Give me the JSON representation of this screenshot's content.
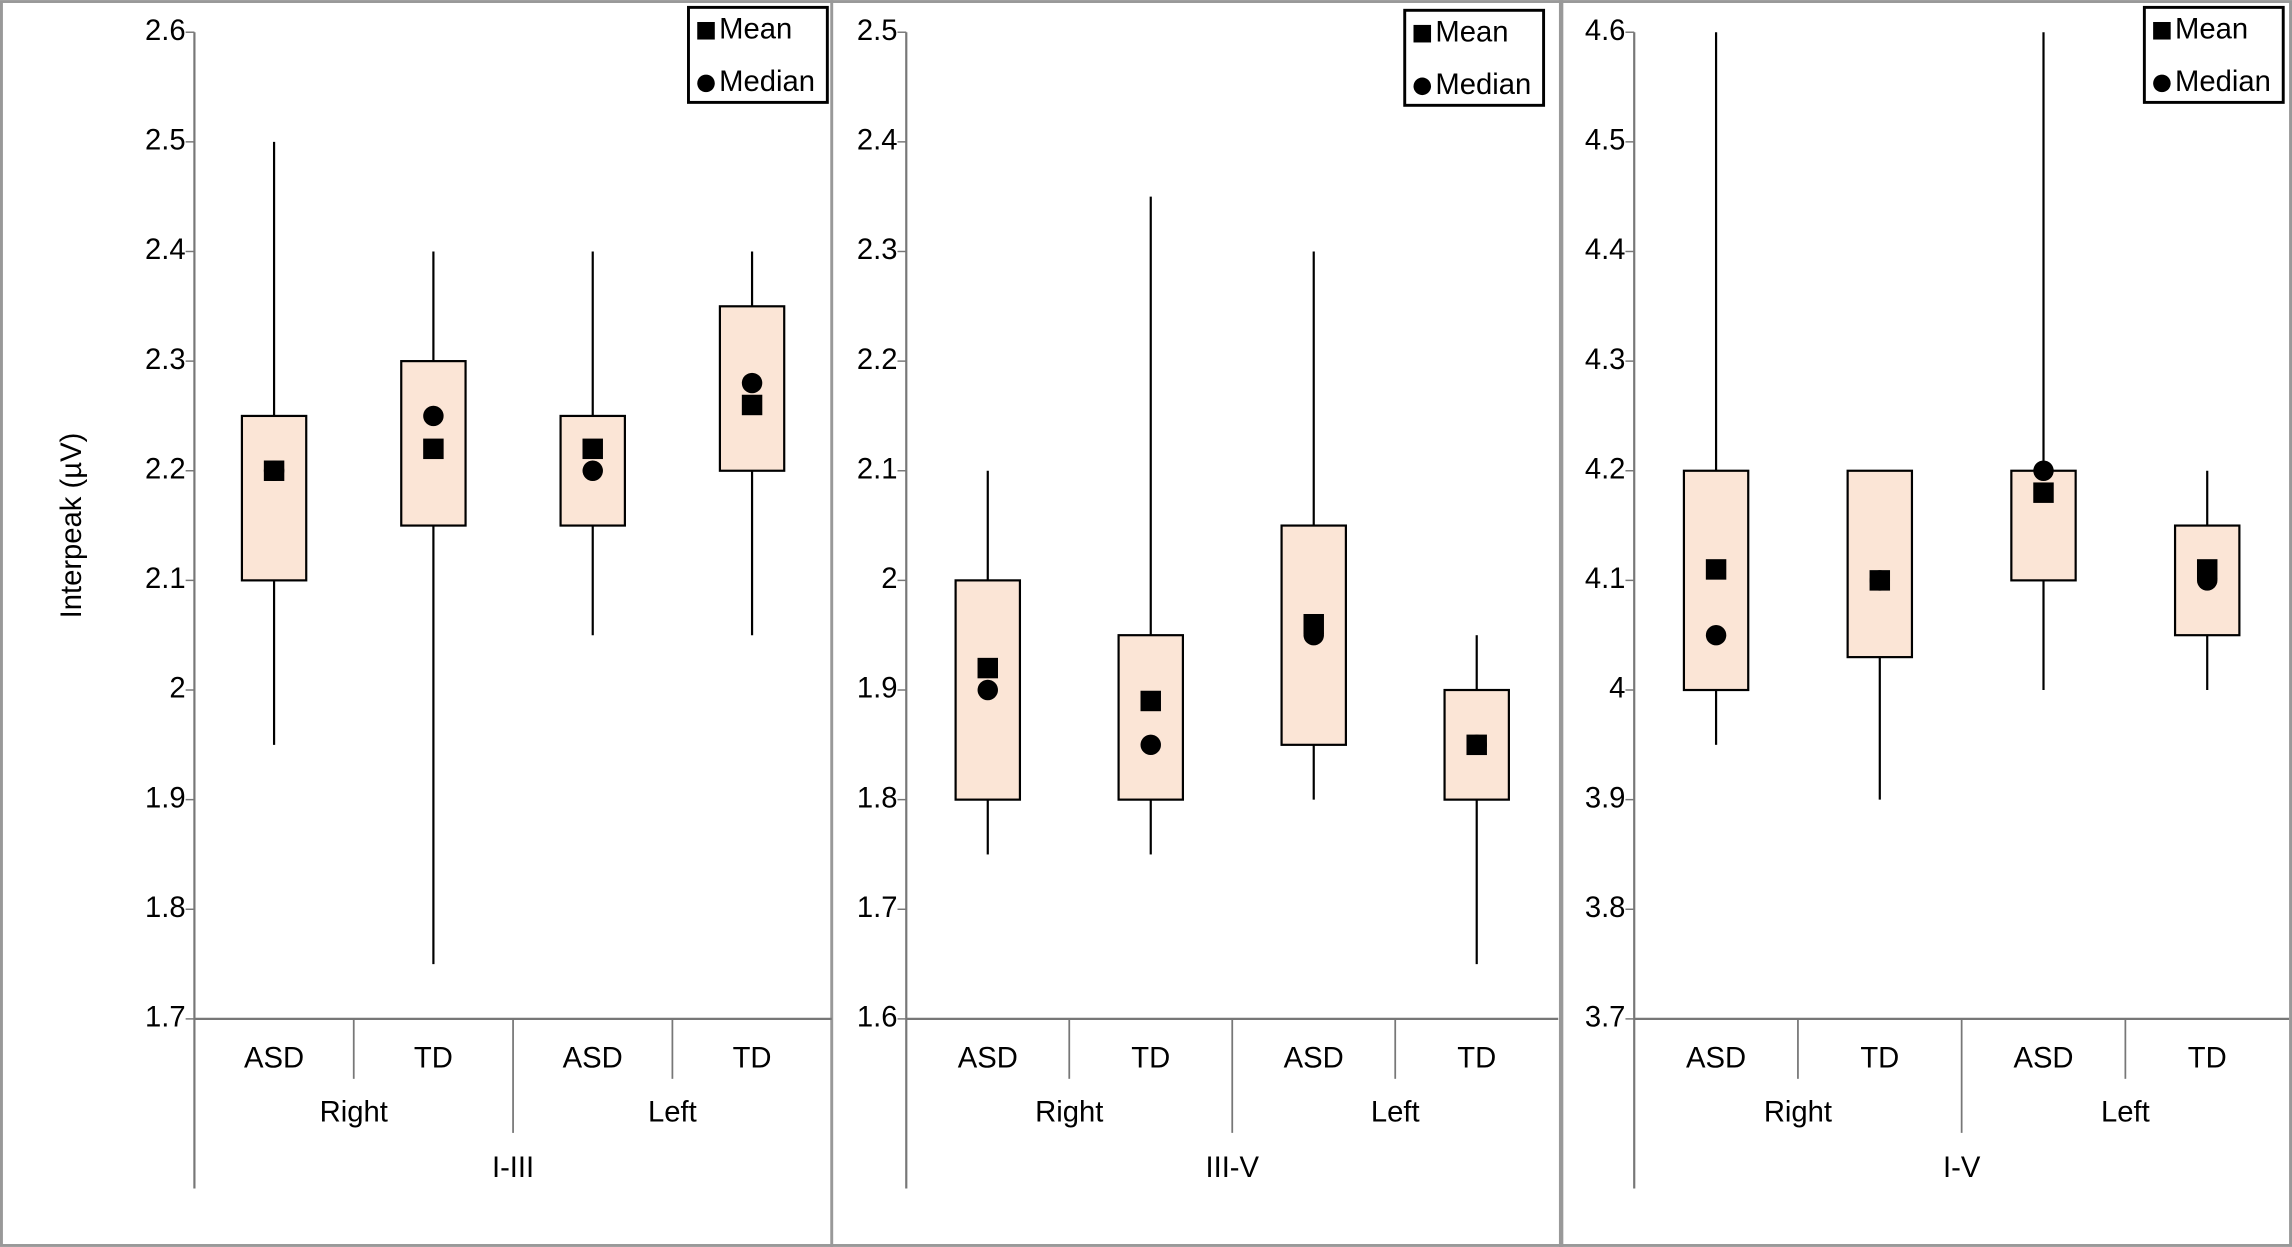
{
  "chart_data": [
    {
      "type": "box",
      "ylabel": "Interpeak (µV)",
      "ylim": [
        1.7,
        2.6
      ],
      "yticks": [
        1.7,
        1.8,
        1.9,
        2,
        2.1,
        2.2,
        2.3,
        2.4,
        2.5,
        2.6
      ],
      "categories": [
        "ASD",
        "TD",
        "ASD",
        "TD"
      ],
      "groups": [
        "Right",
        "Left"
      ],
      "panel_label": "I-III",
      "box_color": "#fbe5d6",
      "legend": {
        "mean": "Mean",
        "median": "Median"
      },
      "boxes": [
        {
          "min": 1.95,
          "q1": 2.1,
          "q3": 2.25,
          "max": 2.5,
          "mean": 2.2,
          "median": 2.2
        },
        {
          "min": 1.75,
          "q1": 2.15,
          "q3": 2.3,
          "max": 2.4,
          "mean": 2.22,
          "median": 2.25
        },
        {
          "min": 2.05,
          "q1": 2.15,
          "q3": 2.25,
          "max": 2.4,
          "mean": 2.22,
          "median": 2.2
        },
        {
          "min": 2.05,
          "q1": 2.2,
          "q3": 2.35,
          "max": 2.4,
          "mean": 2.26,
          "median": 2.28
        }
      ]
    },
    {
      "type": "box",
      "ylim": [
        1.6,
        2.5
      ],
      "yticks": [
        1.6,
        1.7,
        1.8,
        1.9,
        2,
        2.1,
        2.2,
        2.3,
        2.4,
        2.5
      ],
      "categories": [
        "ASD",
        "TD",
        "ASD",
        "TD"
      ],
      "groups": [
        "Right",
        "Left"
      ],
      "panel_label": "III-V",
      "box_color": "#fbe5d6",
      "legend": {
        "mean": "Mean",
        "median": "Median"
      },
      "boxes": [
        {
          "min": 1.75,
          "q1": 1.8,
          "q3": 2.0,
          "max": 2.1,
          "mean": 1.92,
          "median": 1.9
        },
        {
          "min": 1.75,
          "q1": 1.8,
          "q3": 1.95,
          "max": 2.35,
          "mean": 1.89,
          "median": 1.85
        },
        {
          "min": 1.8,
          "q1": 1.85,
          "q3": 2.05,
          "max": 2.3,
          "mean": 1.96,
          "median": 1.95
        },
        {
          "min": 1.65,
          "q1": 1.8,
          "q3": 1.9,
          "max": 1.95,
          "mean": 1.85,
          "median": 1.85
        }
      ]
    },
    {
      "type": "box",
      "ylim": [
        3.7,
        4.6
      ],
      "yticks": [
        3.7,
        3.8,
        3.9,
        4,
        4.1,
        4.2,
        4.3,
        4.4,
        4.5,
        4.6
      ],
      "categories": [
        "ASD",
        "TD",
        "ASD",
        "TD"
      ],
      "groups": [
        "Right",
        "Left"
      ],
      "panel_label": "I-V",
      "box_color": "#fbe5d6",
      "legend": {
        "mean": "Mean",
        "median": "Median"
      },
      "boxes": [
        {
          "min": 3.95,
          "q1": 4.0,
          "q3": 4.2,
          "max": 4.6,
          "mean": 4.11,
          "median": 4.05
        },
        {
          "min": 3.9,
          "q1": 4.03,
          "q3": 4.2,
          "max": 4.2,
          "mean": 4.1,
          "median": 4.1
        },
        {
          "min": 4.0,
          "q1": 4.1,
          "q3": 4.2,
          "max": 4.6,
          "mean": 4.18,
          "median": 4.2
        },
        {
          "min": 4.0,
          "q1": 4.05,
          "q3": 4.15,
          "max": 4.2,
          "mean": 4.11,
          "median": 4.1
        }
      ]
    }
  ]
}
